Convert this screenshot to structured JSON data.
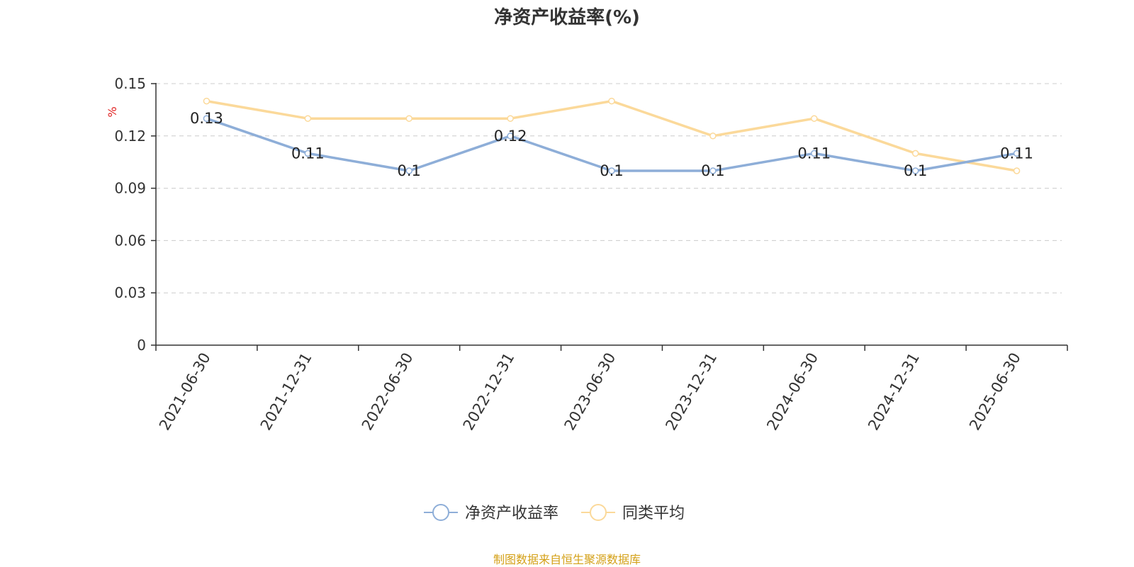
{
  "chart_data": {
    "type": "line",
    "title": "净资产收益率(%)",
    "ylabel": "%",
    "categories": [
      "2021-06-30",
      "2021-12-31",
      "2022-06-30",
      "2022-12-31",
      "2023-06-30",
      "2023-12-31",
      "2024-06-30",
      "2024-12-31",
      "2025-06-30"
    ],
    "ylim": [
      0,
      0.15
    ],
    "yticks": [
      "0",
      "0.03",
      "0.06",
      "0.09",
      "0.12",
      "0.15"
    ],
    "grid": true,
    "legend_position": "bottom-center",
    "series": [
      {
        "name": "净资产收益率",
        "color": "#8eaed8",
        "values": [
          0.13,
          0.11,
          0.1,
          0.12,
          0.1,
          0.1,
          0.11,
          0.1,
          0.11
        ],
        "labels": [
          "0.13",
          "0.11",
          "0.1",
          "0.12",
          "0.1",
          "0.1",
          "0.11",
          "0.1",
          "0.11"
        ]
      },
      {
        "name": "同类平均",
        "color": "#fbd99a",
        "values": [
          0.14,
          0.13,
          0.13,
          0.13,
          0.14,
          0.12,
          0.13,
          0.11,
          0.1
        ]
      }
    ]
  },
  "footer": {
    "source": "制图数据来自恒生聚源数据库"
  },
  "colors": {
    "axis": "#333333",
    "grid": "#cccccc",
    "ylabel": "#e02020",
    "text": "#333333"
  }
}
